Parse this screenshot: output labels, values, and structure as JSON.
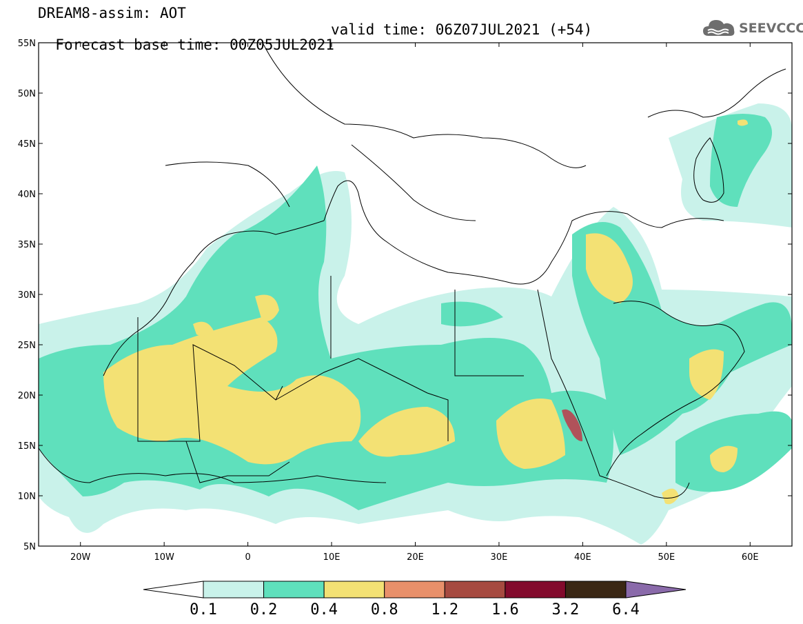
{
  "header": {
    "line1": "DREAM8-assim: AOT",
    "line2_base": "Forecast base time: 00Z05JUL2021",
    "line2_valid": "valid time: 06Z07JUL2021 (+54)"
  },
  "logo": {
    "text": "SEEVCCC",
    "icon": "cloud-icon"
  },
  "map": {
    "lon_range": [
      -25,
      65
    ],
    "lat_range": [
      5,
      55
    ],
    "lon_ticks": [
      "20W",
      "10W",
      "0",
      "10E",
      "20E",
      "30E",
      "40E",
      "50E",
      "60E"
    ],
    "lat_ticks": [
      "5N",
      "10N",
      "15N",
      "20N",
      "25N",
      "30N",
      "35N",
      "40N",
      "45N",
      "50N",
      "55N"
    ]
  },
  "colorbar": {
    "labels": [
      "0.1",
      "0.2",
      "0.4",
      "0.8",
      "1.2",
      "1.6",
      "3.2",
      "6.4"
    ],
    "colors": [
      "#ffffff",
      "#c9f2ea",
      "#5fe0bc",
      "#f3e174",
      "#e8906a",
      "#a64a40",
      "#820a2c",
      "#3a2714",
      "#8a6aaa"
    ]
  },
  "palette": {
    "c01": "#c9f2ea",
    "c02": "#5fe0bc",
    "c04": "#f3e174",
    "c12": "#b0525a"
  }
}
